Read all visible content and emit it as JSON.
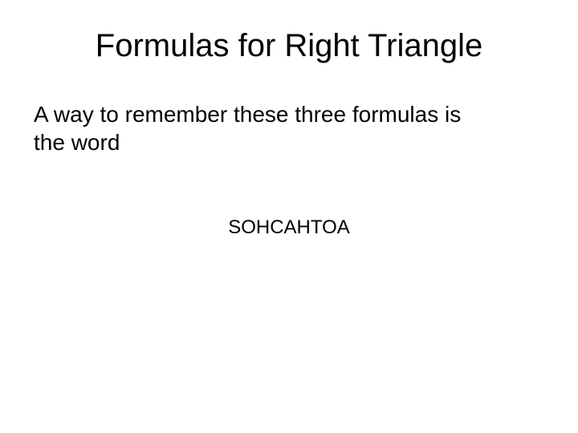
{
  "slide": {
    "title": "Formulas for Right Triangle",
    "body_line1": "A way to remember these three formulas is",
    "body_line2": "the word",
    "mnemonic": "SOHCAHTOA",
    "styling": {
      "background_color": "#ffffff",
      "text_color": "#000000",
      "title_fontsize": 40,
      "body_fontsize": 28,
      "mnemonic_fontsize": 24,
      "font_family": "Arial"
    }
  }
}
